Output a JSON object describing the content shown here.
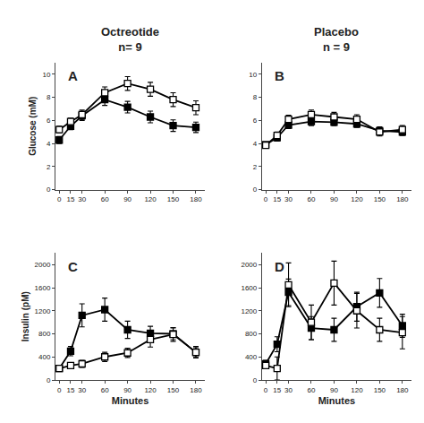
{
  "chart_data": [
    {
      "type": "line",
      "title": "Octreotide",
      "subtitle": "n= 9",
      "annotations": [
        "A"
      ],
      "ylabel": "Glucose (mM)",
      "x": [
        0,
        15,
        30,
        60,
        90,
        120,
        150,
        180
      ],
      "series": [
        {
          "color": "black",
          "marker": "square",
          "line_style": "solid",
          "values": [
            4.3,
            5.5,
            6.4,
            7.8,
            7.15,
            6.3,
            5.55,
            5.4
          ],
          "errors": [
            0.3,
            0.3,
            0.4,
            0.5,
            0.5,
            0.5,
            0.5,
            0.45
          ]
        },
        {
          "color": "black",
          "marker": "square-open",
          "line_style": "solid",
          "values": [
            5.2,
            5.9,
            6.5,
            8.4,
            9.2,
            8.7,
            7.8,
            7.1
          ],
          "errors": [
            0.3,
            0.3,
            0.4,
            0.5,
            0.6,
            0.6,
            0.6,
            0.6
          ]
        }
      ],
      "xlim": [
        -5,
        192
      ],
      "xticks": [
        0,
        15,
        30,
        60,
        90,
        120,
        150,
        180
      ],
      "ylim": [
        0,
        11
      ],
      "yticks": [
        0,
        2,
        4,
        6,
        8,
        10
      ],
      "grid": false
    },
    {
      "type": "line",
      "title": "Placebo",
      "subtitle": "n = 9",
      "annotations": [
        "B"
      ],
      "x": [
        0,
        15,
        30,
        60,
        90,
        120,
        150,
        180
      ],
      "series": [
        {
          "color": "black",
          "marker": "square",
          "line_style": "solid",
          "values": [
            3.9,
            4.5,
            5.6,
            5.9,
            5.85,
            5.7,
            5.1,
            5.0
          ],
          "errors": [
            0.2,
            0.3,
            0.3,
            0.35,
            0.3,
            0.3,
            0.35,
            0.3
          ]
        },
        {
          "color": "black",
          "marker": "square-open",
          "line_style": "solid",
          "values": [
            3.85,
            4.7,
            6.1,
            6.5,
            6.3,
            6.1,
            5.0,
            5.2
          ],
          "errors": [
            0.2,
            0.3,
            0.35,
            0.4,
            0.4,
            0.4,
            0.35,
            0.35
          ]
        }
      ],
      "xlim": [
        -5,
        192
      ],
      "xticks": [
        0,
        15,
        30,
        60,
        90,
        120,
        150,
        180
      ],
      "ylim": [
        0,
        11
      ],
      "yticks": [
        0,
        2,
        4,
        6,
        8,
        10
      ],
      "grid": false
    },
    {
      "type": "line",
      "annotations": [
        "C"
      ],
      "ylabel": "Insulin (pM)",
      "xlabel": "Minutes",
      "x": [
        0,
        15,
        30,
        60,
        90,
        120,
        150,
        180
      ],
      "series": [
        {
          "color": "black",
          "marker": "square",
          "line_style": "solid",
          "values": [
            200,
            500,
            1120,
            1220,
            870,
            810,
            800,
            480
          ],
          "errors": [
            50,
            80,
            200,
            200,
            150,
            120,
            100,
            80
          ]
        },
        {
          "color": "black",
          "marker": "square-open",
          "line_style": "solid",
          "values": [
            200,
            250,
            280,
            400,
            470,
            700,
            790,
            480
          ],
          "errors": [
            50,
            50,
            60,
            80,
            80,
            130,
            120,
            100
          ]
        }
      ],
      "xlim": [
        -5,
        192
      ],
      "xticks": [
        0,
        15,
        30,
        60,
        90,
        120,
        150,
        180
      ],
      "ylim": [
        0,
        2200
      ],
      "yticks": [
        0,
        400,
        800,
        1200,
        1600,
        2000
      ],
      "grid": false
    },
    {
      "type": "line",
      "annotations": [
        "D"
      ],
      "xlabel": "Minutes",
      "x": [
        0,
        15,
        30,
        60,
        90,
        120,
        150,
        180
      ],
      "series": [
        {
          "color": "black",
          "marker": "square",
          "line_style": "solid",
          "values": [
            280,
            620,
            1520,
            900,
            870,
            1270,
            1510,
            940
          ],
          "errors": [
            60,
            130,
            230,
            200,
            200,
            250,
            250,
            200
          ]
        },
        {
          "color": "black",
          "marker": "square-open",
          "line_style": "solid",
          "values": [
            250,
            200,
            1650,
            1000,
            1680,
            1200,
            870,
            820
          ],
          "errors": [
            50,
            200,
            380,
            300,
            380,
            300,
            200,
            280
          ]
        }
      ],
      "xlim": [
        -5,
        192
      ],
      "xticks": [
        0,
        15,
        30,
        60,
        90,
        120,
        150,
        180
      ],
      "ylim": [
        0,
        2200
      ],
      "yticks": [
        0,
        400,
        800,
        1200,
        1600,
        2000
      ],
      "grid": false
    }
  ]
}
